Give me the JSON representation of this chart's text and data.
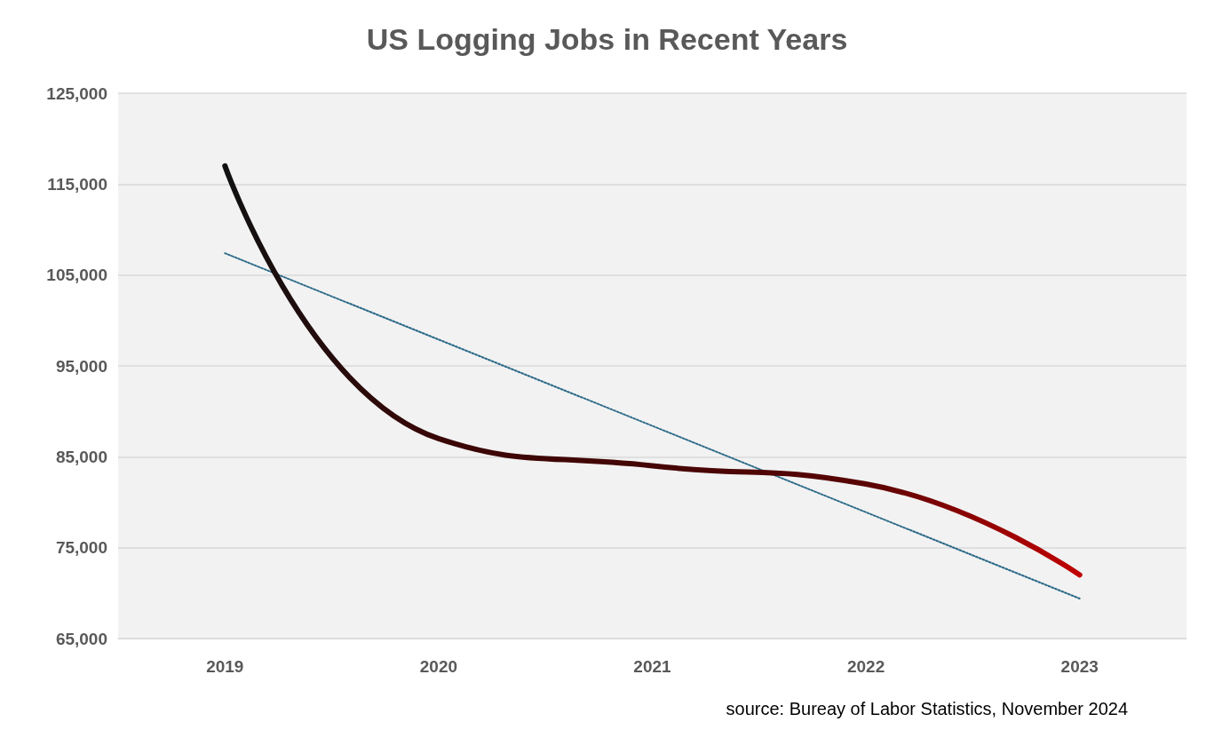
{
  "chart_data": {
    "type": "line",
    "title": "US Logging Jobs in Recent Years",
    "categories": [
      "2019",
      "2020",
      "2021",
      "2022",
      "2023"
    ],
    "series": [
      {
        "colors": [
          "#111111",
          "#3a0606",
          "#450505",
          "#5a0404",
          "#c00000"
        ],
        "values": [
          117000,
          87000,
          84000,
          82000,
          72000
        ],
        "line_style": "solid"
      },
      {
        "color": "#2e6b8a",
        "values": [
          107400,
          97900,
          88400,
          78900,
          69400
        ],
        "line_style": "dotted"
      }
    ],
    "ylim": [
      65000,
      125000
    ],
    "yticks": [
      {
        "value": 65000,
        "label": "65,000"
      },
      {
        "value": 75000,
        "label": "75,000"
      },
      {
        "value": 85000,
        "label": "85,000"
      },
      {
        "value": 95000,
        "label": "95,000"
      },
      {
        "value": 105000,
        "label": "105,000"
      },
      {
        "value": 115000,
        "label": "115,000"
      },
      {
        "value": 125000,
        "label": "125,000"
      }
    ],
    "grid": "y",
    "marker": "none",
    "annotations": [
      "source: Bureay of Labor Statistics, November 2024"
    ]
  }
}
